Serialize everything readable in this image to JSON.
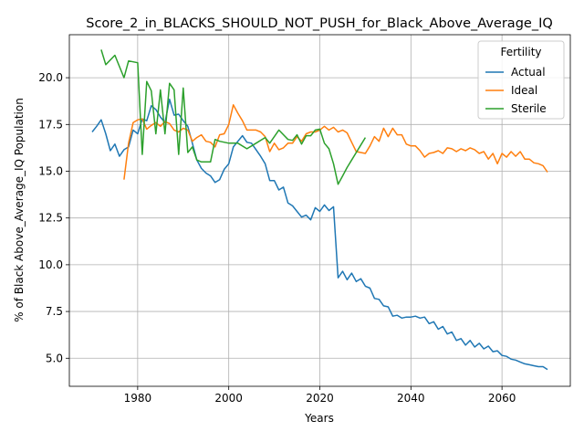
{
  "chart_data": {
    "type": "line",
    "title": "Score_2_in_BLACKS_SHOULD_NOT_PUSH_for_Black_Above_Average_IQ",
    "xlabel": "Years",
    "ylabel": "% of Black Above_Average_IQ Population",
    "xlim": [
      1965,
      2075
    ],
    "ylim": [
      3.5,
      22.3
    ],
    "xticks": [
      1980,
      2000,
      2020,
      2040,
      2060
    ],
    "yticks": [
      5.0,
      7.5,
      10.0,
      12.5,
      15.0,
      17.5,
      20.0
    ],
    "grid": true,
    "legend": {
      "title": "Fertility",
      "placement": "top-right"
    },
    "series": [
      {
        "name": "Actual",
        "color": "#1f77b4",
        "x": [
          1970,
          1971,
          1972,
          1973,
          1974,
          1975,
          1976,
          1977,
          1978,
          1979,
          1980,
          1981,
          1982,
          1983,
          1984,
          1985,
          1986,
          1987,
          1988,
          1989,
          1990,
          1991,
          1992,
          1993,
          1994,
          1995,
          1996,
          1997,
          1998,
          1999,
          2000,
          2001,
          2002,
          2003,
          2004,
          2005,
          2006,
          2007,
          2008,
          2009,
          2010,
          2011,
          2012,
          2013,
          2014,
          2015,
          2016,
          2017,
          2018,
          2019,
          2020,
          2021,
          2022,
          2023,
          2024,
          2025,
          2026,
          2027,
          2028,
          2029,
          2030,
          2031,
          2032,
          2033,
          2034,
          2035,
          2036,
          2037,
          2038,
          2039,
          2040,
          2041,
          2042,
          2043,
          2044,
          2045,
          2046,
          2047,
          2048,
          2049,
          2050,
          2051,
          2052,
          2053,
          2054,
          2055,
          2056,
          2057,
          2058,
          2059,
          2060,
          2061,
          2062,
          2063,
          2064,
          2065,
          2066,
          2067,
          2068,
          2069,
          2070
        ],
        "values": [
          17.1,
          17.4,
          17.75,
          17.0,
          16.1,
          16.45,
          15.8,
          16.15,
          16.3,
          17.2,
          17.0,
          17.8,
          17.7,
          18.5,
          18.3,
          17.9,
          17.6,
          18.85,
          18.0,
          18.05,
          17.7,
          17.4,
          16.5,
          15.6,
          15.15,
          14.9,
          14.75,
          14.4,
          14.55,
          15.1,
          15.4,
          16.3,
          16.6,
          16.9,
          16.55,
          16.5,
          16.15,
          15.8,
          15.4,
          14.5,
          14.5,
          14.0,
          14.15,
          13.3,
          13.15,
          12.85,
          12.55,
          12.65,
          12.4,
          13.05,
          12.85,
          13.2,
          12.9,
          13.1,
          9.3,
          9.65,
          9.2,
          9.55,
          9.1,
          9.25,
          8.85,
          8.75,
          8.2,
          8.15,
          7.8,
          7.75,
          7.25,
          7.3,
          7.15,
          7.2,
          7.2,
          7.25,
          7.15,
          7.2,
          6.85,
          6.95,
          6.55,
          6.7,
          6.3,
          6.4,
          5.95,
          6.05,
          5.7,
          5.95,
          5.6,
          5.8,
          5.5,
          5.65,
          5.35,
          5.4,
          5.15,
          5.1,
          4.95,
          4.9,
          4.8,
          4.7,
          4.65,
          4.6,
          4.55,
          4.55,
          4.4
        ]
      },
      {
        "name": "Ideal",
        "color": "#ff7f0e",
        "x": [
          1977,
          1978,
          1979,
          1980,
          1981,
          1982,
          1983,
          1984,
          1985,
          1986,
          1987,
          1988,
          1989,
          1990,
          1991,
          1992,
          1993,
          1994,
          1995,
          1996,
          1997,
          1998,
          1999,
          2000,
          2001,
          2002,
          2003,
          2004,
          2005,
          2006,
          2007,
          2008,
          2009,
          2010,
          2011,
          2012,
          2013,
          2014,
          2015,
          2016,
          2017,
          2018,
          2019,
          2020,
          2021,
          2022,
          2023,
          2024,
          2025,
          2026,
          2027,
          2028,
          2029,
          2030,
          2031,
          2032,
          2033,
          2034,
          2035,
          2036,
          2037,
          2038,
          2039,
          2040,
          2041,
          2042,
          2043,
          2044,
          2045,
          2046,
          2047,
          2048,
          2049,
          2050,
          2051,
          2052,
          2053,
          2054,
          2055,
          2056,
          2057,
          2058,
          2059,
          2060,
          2061,
          2062,
          2063,
          2064,
          2065,
          2066,
          2067,
          2068,
          2069,
          2070
        ],
        "values": [
          14.55,
          16.5,
          17.6,
          17.75,
          17.8,
          17.25,
          17.45,
          17.6,
          17.4,
          17.65,
          17.55,
          17.2,
          17.1,
          17.3,
          17.2,
          16.6,
          16.8,
          16.95,
          16.6,
          16.55,
          16.3,
          16.95,
          17.0,
          17.5,
          18.55,
          18.1,
          17.7,
          17.2,
          17.2,
          17.2,
          17.1,
          16.85,
          16.05,
          16.5,
          16.15,
          16.25,
          16.5,
          16.5,
          16.85,
          16.6,
          17.0,
          17.1,
          17.1,
          17.2,
          17.4,
          17.2,
          17.35,
          17.1,
          17.2,
          17.05,
          16.55,
          16.05,
          16.0,
          15.95,
          16.35,
          16.85,
          16.6,
          17.3,
          16.85,
          17.3,
          16.95,
          16.95,
          16.45,
          16.35,
          16.35,
          16.1,
          15.75,
          15.95,
          16.0,
          16.1,
          15.95,
          16.25,
          16.2,
          16.05,
          16.2,
          16.1,
          16.25,
          16.15,
          15.95,
          16.05,
          15.65,
          15.95,
          15.4,
          15.95,
          15.75,
          16.05,
          15.8,
          16.05,
          15.65,
          15.65,
          15.45,
          15.4,
          15.3,
          14.95
        ]
      },
      {
        "name": "Sterile",
        "color": "#2ca02c",
        "x": [
          1972,
          1973,
          1975,
          1977,
          1978,
          1980,
          1981,
          1982,
          1983,
          1984,
          1985,
          1986,
          1987,
          1988,
          1989,
          1990,
          1991,
          1992,
          1993,
          1994,
          1996,
          1997,
          1998,
          2000,
          2002,
          2004,
          2006,
          2008,
          2009,
          2011,
          2013,
          2014,
          2015,
          2016,
          2017,
          2018,
          2019,
          2020,
          2021,
          2022,
          2023,
          2024,
          2025,
          2026,
          2027,
          2028,
          2029,
          2030
        ],
        "values": [
          21.5,
          20.7,
          21.2,
          20.0,
          20.9,
          20.8,
          15.9,
          19.8,
          19.3,
          17.0,
          19.35,
          17.0,
          19.7,
          19.35,
          15.9,
          19.45,
          16.0,
          16.3,
          15.6,
          15.5,
          15.5,
          16.7,
          16.6,
          16.5,
          16.5,
          16.2,
          16.5,
          16.8,
          16.5,
          17.2,
          16.7,
          16.65,
          16.95,
          16.45,
          16.9,
          16.9,
          17.2,
          17.25,
          16.5,
          16.2,
          15.4,
          14.3,
          14.75,
          15.2,
          15.6,
          16.0,
          16.4,
          16.8
        ]
      }
    ]
  }
}
